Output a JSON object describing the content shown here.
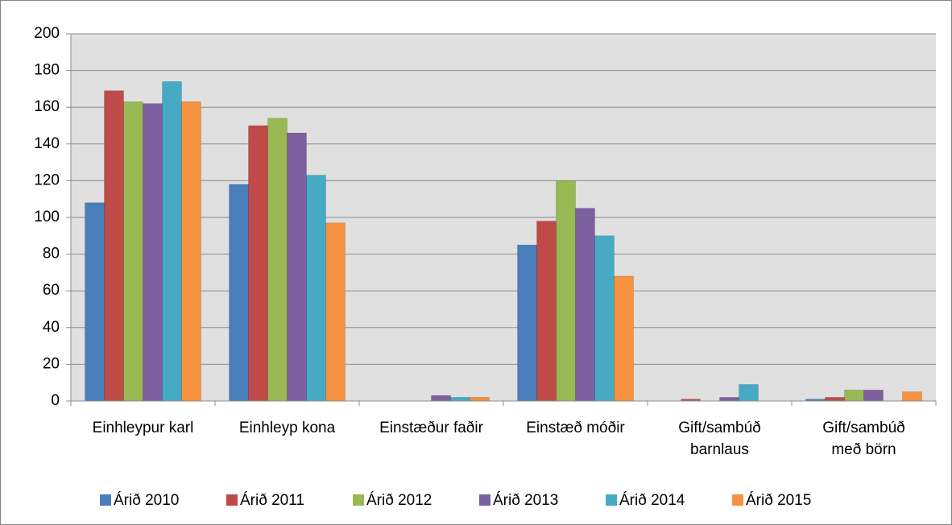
{
  "chart_data": {
    "type": "bar",
    "categories": [
      "Einhleypur karl",
      "Einhleyp kona",
      "Einstæður faðir",
      "Einstæð móðir",
      "Gift/sambúð\nbarnlaus",
      "Gift/sambúð\nmeð börn"
    ],
    "series": [
      {
        "name": "Árið 2010",
        "color": "#4a7ebb",
        "values": [
          108,
          118,
          0,
          85,
          0,
          1
        ]
      },
      {
        "name": "Árið 2011",
        "color": "#be4b48",
        "values": [
          169,
          150,
          0,
          98,
          1,
          2
        ]
      },
      {
        "name": "Árið 2012",
        "color": "#98b954",
        "values": [
          163,
          154,
          0,
          120,
          0,
          6
        ]
      },
      {
        "name": "Árið 2013",
        "color": "#7d60a0",
        "values": [
          162,
          146,
          3,
          105,
          2,
          6
        ]
      },
      {
        "name": "Árið 2014",
        "color": "#46aac5",
        "values": [
          174,
          123,
          2,
          90,
          9,
          0
        ]
      },
      {
        "name": "Árið 2015",
        "color": "#f69240",
        "values": [
          163,
          97,
          2,
          68,
          0,
          5
        ]
      }
    ],
    "ylim": [
      0,
      200
    ],
    "yticks": [
      0,
      20,
      40,
      60,
      80,
      100,
      120,
      140,
      160,
      180,
      200
    ],
    "grid": true,
    "legend": "bottom"
  }
}
